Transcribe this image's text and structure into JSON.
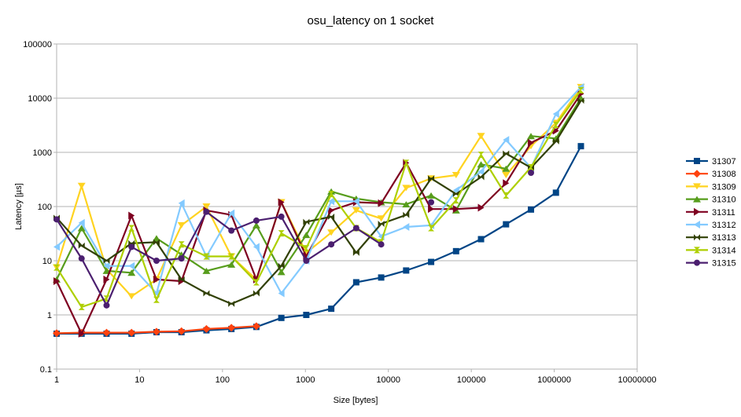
{
  "chart_data": {
    "type": "line",
    "title": "osu_latency on 1 socket",
    "xlabel": "Size [bytes]",
    "ylabel": "Latency [µs]",
    "x_scale": "log",
    "y_scale": "log",
    "xlim": [
      1,
      10000000
    ],
    "ylim": [
      0.1,
      100000
    ],
    "x_ticks": [
      "1",
      "10",
      "100",
      "1000",
      "10000",
      "100000",
      "1000000",
      "10000000"
    ],
    "y_ticks": [
      "0.1",
      "1",
      "10",
      "100",
      "1000",
      "10000",
      "100000"
    ],
    "grid": "horizontal",
    "legend_position": "right",
    "x": [
      1,
      2,
      4,
      8,
      16,
      32,
      64,
      128,
      256,
      512,
      1024,
      2048,
      4096,
      8192,
      16384,
      32768,
      65536,
      131072,
      262144,
      524288,
      1048576,
      2097152
    ],
    "series": [
      {
        "name": "31307",
        "color": "#004586",
        "marker": "square",
        "values": [
          0.45,
          0.45,
          0.45,
          0.45,
          0.48,
          0.48,
          0.52,
          0.55,
          0.6,
          0.88,
          1.0,
          1.3,
          4.0,
          4.9,
          6.6,
          9.5,
          15,
          25,
          47,
          88,
          180,
          1300
        ]
      },
      {
        "name": "31308",
        "color": "#ff420e",
        "marker": "diamond",
        "values": [
          0.46,
          0.47,
          0.47,
          0.47,
          0.49,
          0.5,
          0.55,
          0.58,
          0.62,
          null,
          null,
          null,
          null,
          null,
          null,
          null,
          null,
          null,
          null,
          null,
          null,
          null
        ]
      },
      {
        "name": "31309",
        "color": "#ffd320",
        "marker": "triangle-down",
        "values": [
          7.5,
          240,
          7,
          2.2,
          4.5,
          45,
          100,
          12,
          4.5,
          120,
          14,
          33,
          85,
          60,
          220,
          330,
          380,
          2000,
          380,
          1300,
          3500,
          16000
        ]
      },
      {
        "name": "31310",
        "color": "#579d1c",
        "marker": "triangle-up",
        "values": [
          4.5,
          40,
          6.5,
          6,
          26,
          13,
          6.5,
          8.5,
          45,
          6.2,
          30,
          190,
          140,
          120,
          110,
          160,
          85,
          600,
          500,
          2000,
          1800,
          10000
        ]
      },
      {
        "name": "31311",
        "color": "#7e0021",
        "marker": "triangle-right",
        "values": [
          4.2,
          0.45,
          4.5,
          68,
          4.5,
          4.2,
          85,
          70,
          4.5,
          120,
          12,
          85,
          120,
          115,
          640,
          90,
          90,
          95,
          270,
          1500,
          2500,
          12000
        ]
      },
      {
        "name": "31312",
        "color": "#83caff",
        "marker": "triangle-left",
        "values": [
          18,
          50,
          8,
          8,
          2.5,
          115,
          12,
          75,
          18,
          2.5,
          10,
          125,
          125,
          28,
          42,
          45,
          200,
          440,
          1700,
          520,
          5100,
          16000
        ]
      },
      {
        "name": "31313",
        "color": "#314004",
        "marker": "bowtie",
        "values": [
          62,
          19,
          10,
          21,
          22,
          4.5,
          2.5,
          1.6,
          2.5,
          8,
          52,
          65,
          14,
          48,
          70,
          330,
          170,
          350,
          950,
          520,
          1600,
          9000
        ]
      },
      {
        "name": "31314",
        "color": "#aecf00",
        "marker": "hourglass",
        "values": [
          7.5,
          1.4,
          2,
          40,
          1.9,
          20,
          12,
          12,
          4,
          32,
          17,
          170,
          40,
          22,
          640,
          40,
          130,
          900,
          160,
          530,
          3200,
          14000
        ]
      },
      {
        "name": "31315",
        "color": "#4b1f6f",
        "marker": "circle",
        "values": [
          58,
          11,
          1.5,
          18,
          10,
          11,
          80,
          36,
          55,
          65,
          10,
          20,
          40,
          20,
          null,
          120,
          null,
          null,
          null,
          420,
          null,
          null
        ]
      }
    ]
  }
}
